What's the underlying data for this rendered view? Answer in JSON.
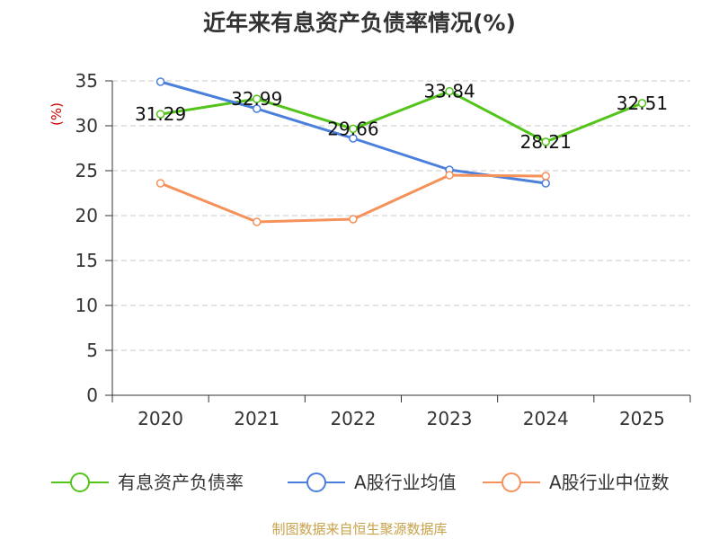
{
  "chart_data": {
    "type": "line",
    "title": "近年来有息资产负债率情况(%)",
    "ylabel": "(%)",
    "xlabel": "",
    "x": [
      "2020",
      "2021",
      "2022",
      "2023",
      "2024",
      "2025"
    ],
    "ylim": [
      0,
      35
    ],
    "yticks": [
      0,
      5,
      10,
      15,
      20,
      25,
      30,
      35
    ],
    "grid": true,
    "legend_position": "bottom",
    "series": [
      {
        "name": "有息资产负债率",
        "color": "#52c41a",
        "show_labels": true,
        "values": [
          31.29,
          32.99,
          29.66,
          33.84,
          28.21,
          32.51
        ]
      },
      {
        "name": "A股行业均值",
        "color": "#4a7fdb",
        "show_labels": false,
        "values": [
          34.9,
          31.9,
          28.6,
          25.1,
          23.6,
          null
        ]
      },
      {
        "name": "A股行业中位数",
        "color": "#f5915a",
        "show_labels": false,
        "values": [
          23.6,
          19.3,
          19.6,
          24.5,
          24.4,
          null
        ]
      }
    ]
  },
  "source": "制图数据来自恒生聚源数据库"
}
